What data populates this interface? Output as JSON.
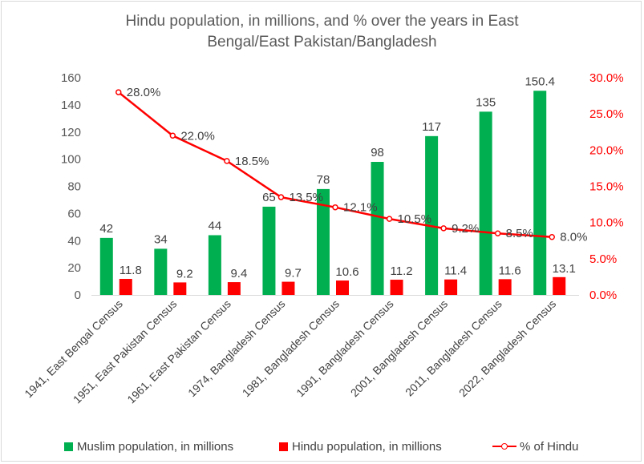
{
  "chart_data": {
    "type": "bar",
    "title_lines": [
      "Hindu population, in millions, and % over the years in East",
      "Bengal/East Pakistan/Bangladesh"
    ],
    "categories": [
      "1941, East Bengal Census",
      "1951, East Pakistan Census",
      "1961, East Pakistan Census",
      "1974, Bangladesh Census",
      "1981, Bangladesh Census",
      "1991, Bangladesh Census",
      "2001, Bangladesh Census",
      "2011, Bangladesh Census",
      "2022, Bangladesh Census"
    ],
    "series": [
      {
        "name": "Muslim population, in millions",
        "kind": "bar",
        "axis": "left",
        "color": "#00b050",
        "values": [
          42,
          34,
          44,
          65,
          78,
          98,
          117,
          135,
          150.4
        ],
        "labels": [
          "42",
          "34",
          "44",
          "65",
          "78",
          "98",
          "117",
          "135",
          "150.4"
        ]
      },
      {
        "name": "Hindu population, in millions",
        "kind": "bar",
        "axis": "left",
        "color": "#ff0000",
        "values": [
          11.8,
          9.2,
          9.4,
          9.7,
          10.6,
          11.2,
          11.4,
          11.6,
          13.1
        ],
        "labels": [
          "11.8",
          "9.2",
          "9.4",
          "9.7",
          "10.6",
          "11.2",
          "11.4",
          "11.6",
          "13.1"
        ]
      },
      {
        "name": "% of Hindu",
        "kind": "line",
        "axis": "right",
        "color": "#ff0000",
        "values": [
          28.0,
          22.0,
          18.5,
          13.5,
          12.1,
          10.5,
          9.2,
          8.5,
          8.0
        ],
        "labels": [
          "28.0%",
          "22.0%",
          "18.5%",
          "13.5%",
          "12.1%",
          "10.5%",
          "9.2%",
          "8.5%",
          "8.0%"
        ]
      }
    ],
    "y_left": {
      "ylim": [
        0,
        160
      ],
      "ticks": [
        0,
        20,
        40,
        60,
        80,
        100,
        120,
        140,
        160
      ],
      "tick_labels": [
        "0",
        "20",
        "40",
        "60",
        "80",
        "100",
        "120",
        "140",
        "160"
      ]
    },
    "y_right": {
      "ylim": [
        0,
        30
      ],
      "ticks": [
        0,
        5,
        10,
        15,
        20,
        25,
        30
      ],
      "tick_labels": [
        "0.0%",
        "5.0%",
        "10.0%",
        "15.0%",
        "20.0%",
        "25.0%",
        "30.0%"
      ],
      "color": "#ff0000"
    },
    "grid": false,
    "legend_position": "bottom"
  }
}
